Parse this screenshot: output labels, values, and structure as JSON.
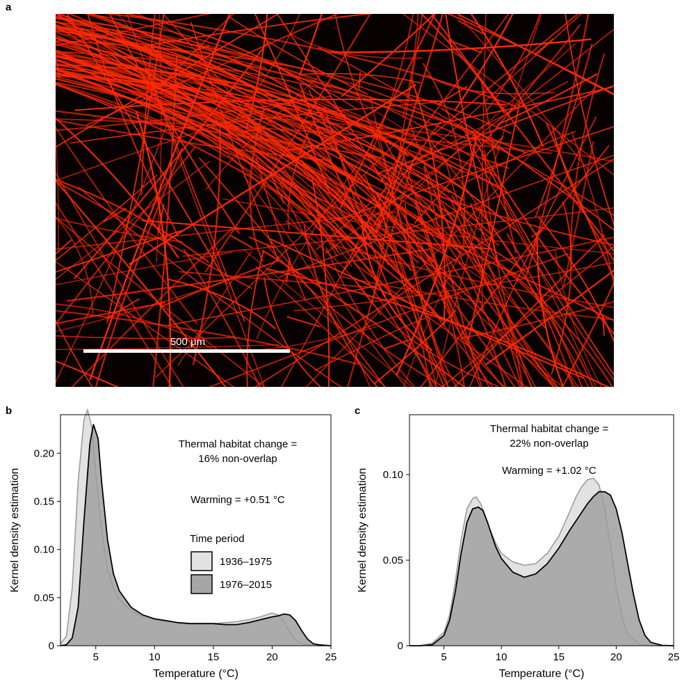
{
  "panels": {
    "a": {
      "letter": "a",
      "scale_bar_label": "500 μm"
    },
    "b": {
      "letter": "b"
    },
    "c": {
      "letter": "c"
    }
  },
  "colors": {
    "background": "#070101",
    "filament": "#ff2a05",
    "early_fill": "#e2e2e2",
    "early_line": "#9c9c9c",
    "late_fill": "#a6a6a6",
    "late_line": "#000000"
  },
  "chart_data": [
    {
      "panel": "b",
      "type": "area",
      "xlabel": "Temperature (°C)",
      "ylabel": "Kernel density estimation",
      "xlim": [
        2,
        25
      ],
      "ylim": [
        0,
        0.24
      ],
      "xticks": [
        5,
        10,
        15,
        20,
        25
      ],
      "yticks": [
        0,
        0.05,
        0.1,
        0.15,
        0.2
      ],
      "ytick_labels": [
        "0",
        "0.05",
        "0.10",
        "0.15",
        "0.20"
      ],
      "legend": {
        "title": "Time period",
        "position": "right",
        "entries": [
          "1936–1975",
          "1976–2015"
        ]
      },
      "annotations": {
        "change_line1": "Thermal habitat change =",
        "change_line2": "16% non-overlap",
        "warming": "Warming = +0.51 °C"
      },
      "series": [
        {
          "name": "1936–1975",
          "x": [
            2,
            2.5,
            3,
            3.5,
            4,
            4.3,
            4.7,
            5,
            5.5,
            6,
            6.5,
            7,
            8,
            9,
            10,
            11,
            12,
            13,
            14,
            15,
            16,
            17,
            18,
            19,
            19.5,
            20,
            20.5,
            21,
            21.5,
            22,
            22.5,
            23,
            24,
            25
          ],
          "y": [
            0.002,
            0.01,
            0.06,
            0.17,
            0.235,
            0.245,
            0.225,
            0.18,
            0.12,
            0.08,
            0.06,
            0.048,
            0.036,
            0.03,
            0.027,
            0.025,
            0.024,
            0.023,
            0.023,
            0.023,
            0.024,
            0.025,
            0.027,
            0.03,
            0.032,
            0.034,
            0.032,
            0.025,
            0.014,
            0.006,
            0.002,
            0.001,
            0,
            0
          ]
        },
        {
          "name": "1976–2015",
          "x": [
            2,
            2.5,
            3,
            3.5,
            4,
            4.5,
            4.8,
            5.2,
            5.5,
            6,
            6.5,
            7,
            8,
            9,
            10,
            11,
            12,
            13,
            14,
            15,
            16,
            17,
            18,
            19,
            20,
            20.5,
            21,
            21.5,
            22,
            22.5,
            23,
            23.5,
            24,
            25
          ],
          "y": [
            0,
            0.001,
            0.008,
            0.04,
            0.13,
            0.21,
            0.23,
            0.215,
            0.17,
            0.11,
            0.075,
            0.057,
            0.04,
            0.032,
            0.028,
            0.026,
            0.024,
            0.023,
            0.023,
            0.023,
            0.022,
            0.022,
            0.024,
            0.027,
            0.03,
            0.031,
            0.033,
            0.032,
            0.026,
            0.016,
            0.007,
            0.002,
            0.001,
            0
          ]
        }
      ]
    },
    {
      "panel": "c",
      "type": "area",
      "xlabel": "Temperature (°C)",
      "ylabel": "Kernel density estimation",
      "xlim": [
        2,
        25
      ],
      "ylim": [
        0,
        0.135
      ],
      "xticks": [
        5,
        10,
        15,
        20,
        25
      ],
      "yticks": [
        0,
        0.05,
        0.1
      ],
      "ytick_labels": [
        "0",
        "0.05",
        "0.10"
      ],
      "annotations": {
        "change_line1": "Thermal habitat change =",
        "change_line2": "22% non-overlap",
        "warming": "Warming = +1.02 °C"
      },
      "series": [
        {
          "name": "1936–1975",
          "x": [
            2,
            3,
            4,
            5,
            5.5,
            6,
            6.5,
            7,
            7.5,
            7.8,
            8.2,
            8.6,
            9,
            9.5,
            10,
            11,
            12,
            13,
            14,
            15,
            16,
            16.5,
            17,
            17.5,
            18,
            18.5,
            19,
            19.5,
            20,
            20.5,
            21,
            22,
            23,
            25
          ],
          "y": [
            0,
            0.0002,
            0.0015,
            0.008,
            0.018,
            0.038,
            0.062,
            0.08,
            0.086,
            0.087,
            0.083,
            0.076,
            0.068,
            0.06,
            0.054,
            0.049,
            0.047,
            0.048,
            0.054,
            0.064,
            0.079,
            0.087,
            0.093,
            0.097,
            0.098,
            0.094,
            0.08,
            0.058,
            0.034,
            0.017,
            0.007,
            0.001,
            0,
            0
          ]
        },
        {
          "name": "1976–2015",
          "x": [
            2,
            3,
            4,
            5,
            5.5,
            6,
            6.5,
            7,
            7.5,
            8,
            8.4,
            8.8,
            9.5,
            10,
            11,
            12,
            13,
            14,
            15,
            16,
            17,
            17.5,
            18,
            18.5,
            19,
            19.5,
            20,
            20.5,
            21,
            21.5,
            22,
            22.5,
            23,
            24,
            25
          ],
          "y": [
            0,
            0,
            0.0006,
            0.006,
            0.015,
            0.032,
            0.054,
            0.072,
            0.08,
            0.081,
            0.079,
            0.072,
            0.058,
            0.051,
            0.043,
            0.04,
            0.042,
            0.048,
            0.057,
            0.068,
            0.078,
            0.083,
            0.087,
            0.09,
            0.09,
            0.088,
            0.08,
            0.066,
            0.048,
            0.03,
            0.015,
            0.006,
            0.002,
            0.0002,
            0
          ]
        }
      ]
    }
  ]
}
